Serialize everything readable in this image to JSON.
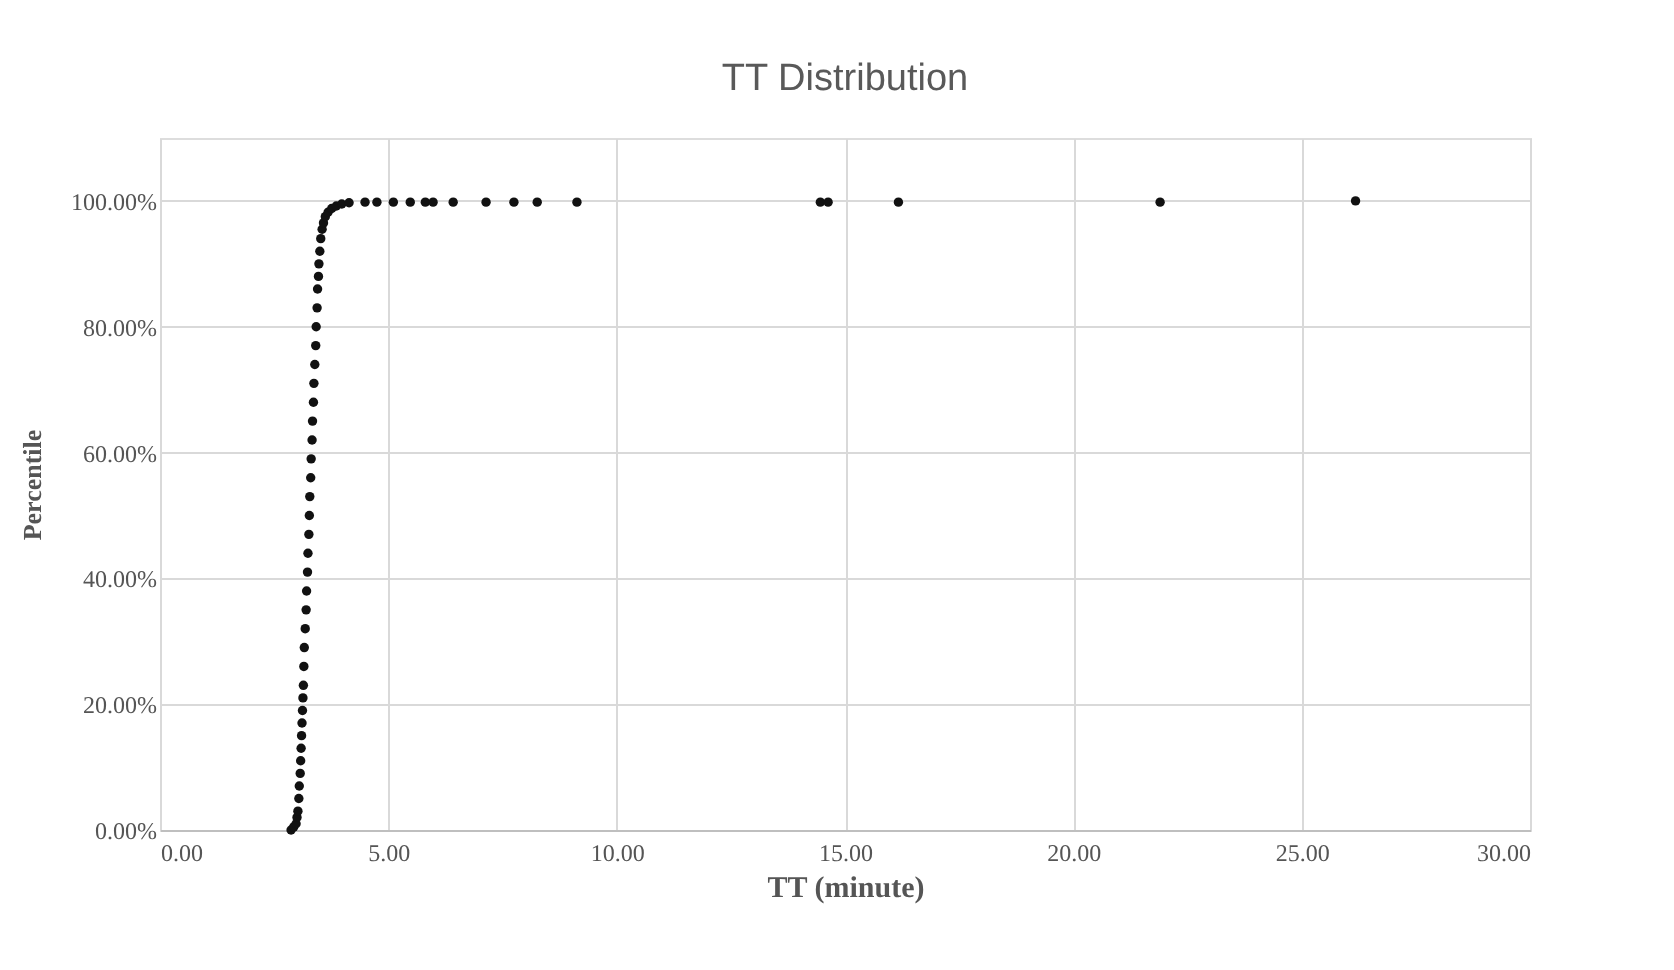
{
  "chart_data": {
    "type": "scatter",
    "title": "TT Distribution",
    "xlabel": "TT (minute)",
    "ylabel": "Percentile",
    "series": [
      {
        "color": "#111111",
        "x": [
          2.87,
          2.93,
          2.98,
          3.0,
          3.02,
          3.04,
          3.05,
          3.07,
          3.08,
          3.09,
          3.1,
          3.11,
          3.12,
          3.13,
          3.14,
          3.15,
          3.16,
          3.18,
          3.2,
          3.21,
          3.23,
          3.24,
          3.26,
          3.27,
          3.28,
          3.3,
          3.31,
          3.33,
          3.34,
          3.36,
          3.37,
          3.39,
          3.41,
          3.42,
          3.44,
          3.45,
          3.47,
          3.48,
          3.5,
          3.52,
          3.55,
          3.58,
          3.62,
          3.68,
          3.76,
          3.86,
          3.98,
          4.14,
          4.49,
          4.75,
          5.11,
          5.48,
          5.81,
          5.98,
          6.42,
          7.14,
          7.75,
          8.26,
          9.13,
          14.46,
          14.63,
          16.17,
          21.9,
          26.18
        ],
        "values": [
          0,
          0.5,
          1,
          2,
          3,
          5,
          7,
          9,
          11,
          13,
          15,
          17,
          19,
          21,
          23,
          26,
          29,
          32,
          35,
          38,
          41,
          44,
          47,
          50,
          53,
          56,
          59,
          62,
          65,
          68,
          71,
          74,
          77,
          80,
          83,
          86,
          88,
          90,
          92,
          94,
          95.5,
          96.5,
          97.5,
          98.2,
          98.8,
          99.2,
          99.5,
          99.7,
          99.8,
          99.8,
          99.8,
          99.8,
          99.8,
          99.8,
          99.8,
          99.8,
          99.8,
          99.8,
          99.8,
          99.8,
          99.8,
          99.8,
          99.8,
          100
        ]
      }
    ],
    "xlim": [
      0,
      30
    ],
    "xticks": [
      {
        "value": 0,
        "label": "0.00"
      },
      {
        "value": 5,
        "label": "5.00"
      },
      {
        "value": 10,
        "label": "10.00"
      },
      {
        "value": 15,
        "label": "15.00"
      },
      {
        "value": 20,
        "label": "20.00"
      },
      {
        "value": 25,
        "label": "25.00"
      },
      {
        "value": 30,
        "label": "30.00"
      }
    ],
    "ylim": [
      0,
      110
    ],
    "yticks": [
      {
        "value": 0,
        "label": "0.00%"
      },
      {
        "value": 20,
        "label": "20.00%"
      },
      {
        "value": 40,
        "label": "40.00%"
      },
      {
        "value": 60,
        "label": "60.00%"
      },
      {
        "value": 80,
        "label": "80.00%"
      },
      {
        "value": 100,
        "label": "100.00%"
      }
    ],
    "grid": true,
    "marker": "circle"
  }
}
